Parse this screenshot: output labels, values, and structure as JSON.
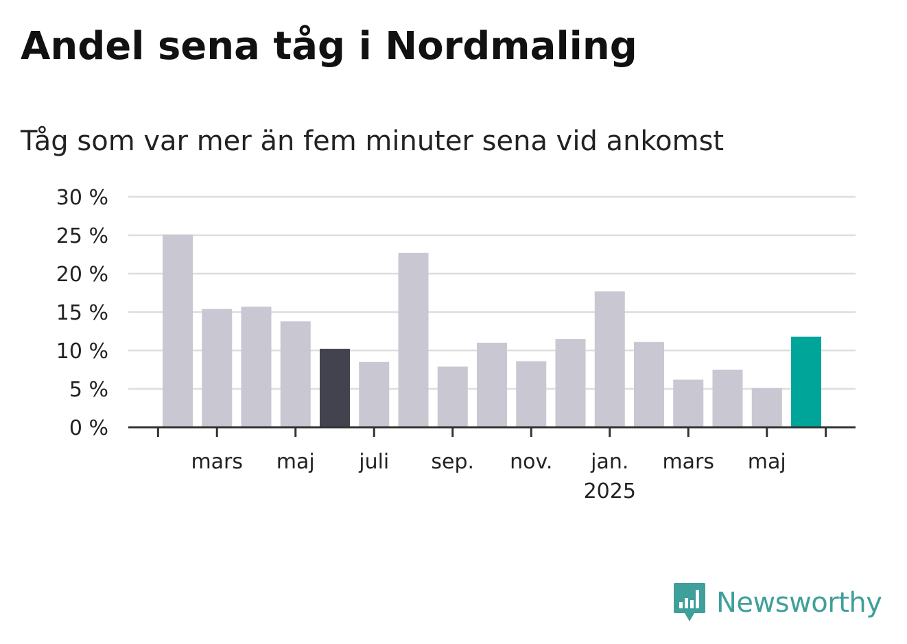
{
  "title": "Andel sena tåg i Nordmaling",
  "subtitle": "Tåg som var mer än fem minuter sena vid ankomst",
  "brand": {
    "name": "Newsworthy",
    "color": "#3f9f9a",
    "icon": "newsworthy-logo-icon"
  },
  "colors": {
    "default_bar": "#c8c7d2",
    "highlight_dark": "#43424f",
    "highlight_latest": "#00a59a",
    "grid": "#dddddd",
    "axis": "#333333"
  },
  "chart_data": {
    "type": "bar",
    "y_tick_labels": [
      "0 %",
      "5 %",
      "10 %",
      "15 %",
      "20 %",
      "25 %",
      "30 %"
    ],
    "y_ticks": [
      0,
      5,
      10,
      15,
      20,
      25,
      30
    ],
    "ylim": [
      0,
      30
    ],
    "grid": true,
    "x_tick_labels": [
      {
        "after_bar": 1,
        "label": "mars",
        "sublabel": ""
      },
      {
        "after_bar": 3,
        "label": "maj",
        "sublabel": ""
      },
      {
        "after_bar": 5,
        "label": "juli",
        "sublabel": ""
      },
      {
        "after_bar": 7,
        "label": "sep.",
        "sublabel": ""
      },
      {
        "after_bar": 9,
        "label": "nov.",
        "sublabel": ""
      },
      {
        "after_bar": 11,
        "label": "jan.",
        "sublabel": "2025"
      },
      {
        "after_bar": 13,
        "label": "mars",
        "sublabel": ""
      },
      {
        "after_bar": 15,
        "label": "maj",
        "sublabel": ""
      }
    ],
    "bars": [
      {
        "value": 25.1,
        "highlight": "none"
      },
      {
        "value": 15.4,
        "highlight": "none"
      },
      {
        "value": 15.7,
        "highlight": "none"
      },
      {
        "value": 13.8,
        "highlight": "none"
      },
      {
        "value": 10.2,
        "highlight": "dark"
      },
      {
        "value": 8.5,
        "highlight": "none"
      },
      {
        "value": 22.7,
        "highlight": "none"
      },
      {
        "value": 7.9,
        "highlight": "none"
      },
      {
        "value": 11.0,
        "highlight": "none"
      },
      {
        "value": 8.6,
        "highlight": "none"
      },
      {
        "value": 11.5,
        "highlight": "none"
      },
      {
        "value": 17.7,
        "highlight": "none"
      },
      {
        "value": 11.1,
        "highlight": "none"
      },
      {
        "value": 6.2,
        "highlight": "none"
      },
      {
        "value": 7.5,
        "highlight": "none"
      },
      {
        "value": 5.1,
        "highlight": "none"
      },
      {
        "value": 11.8,
        "highlight": "latest"
      }
    ]
  }
}
